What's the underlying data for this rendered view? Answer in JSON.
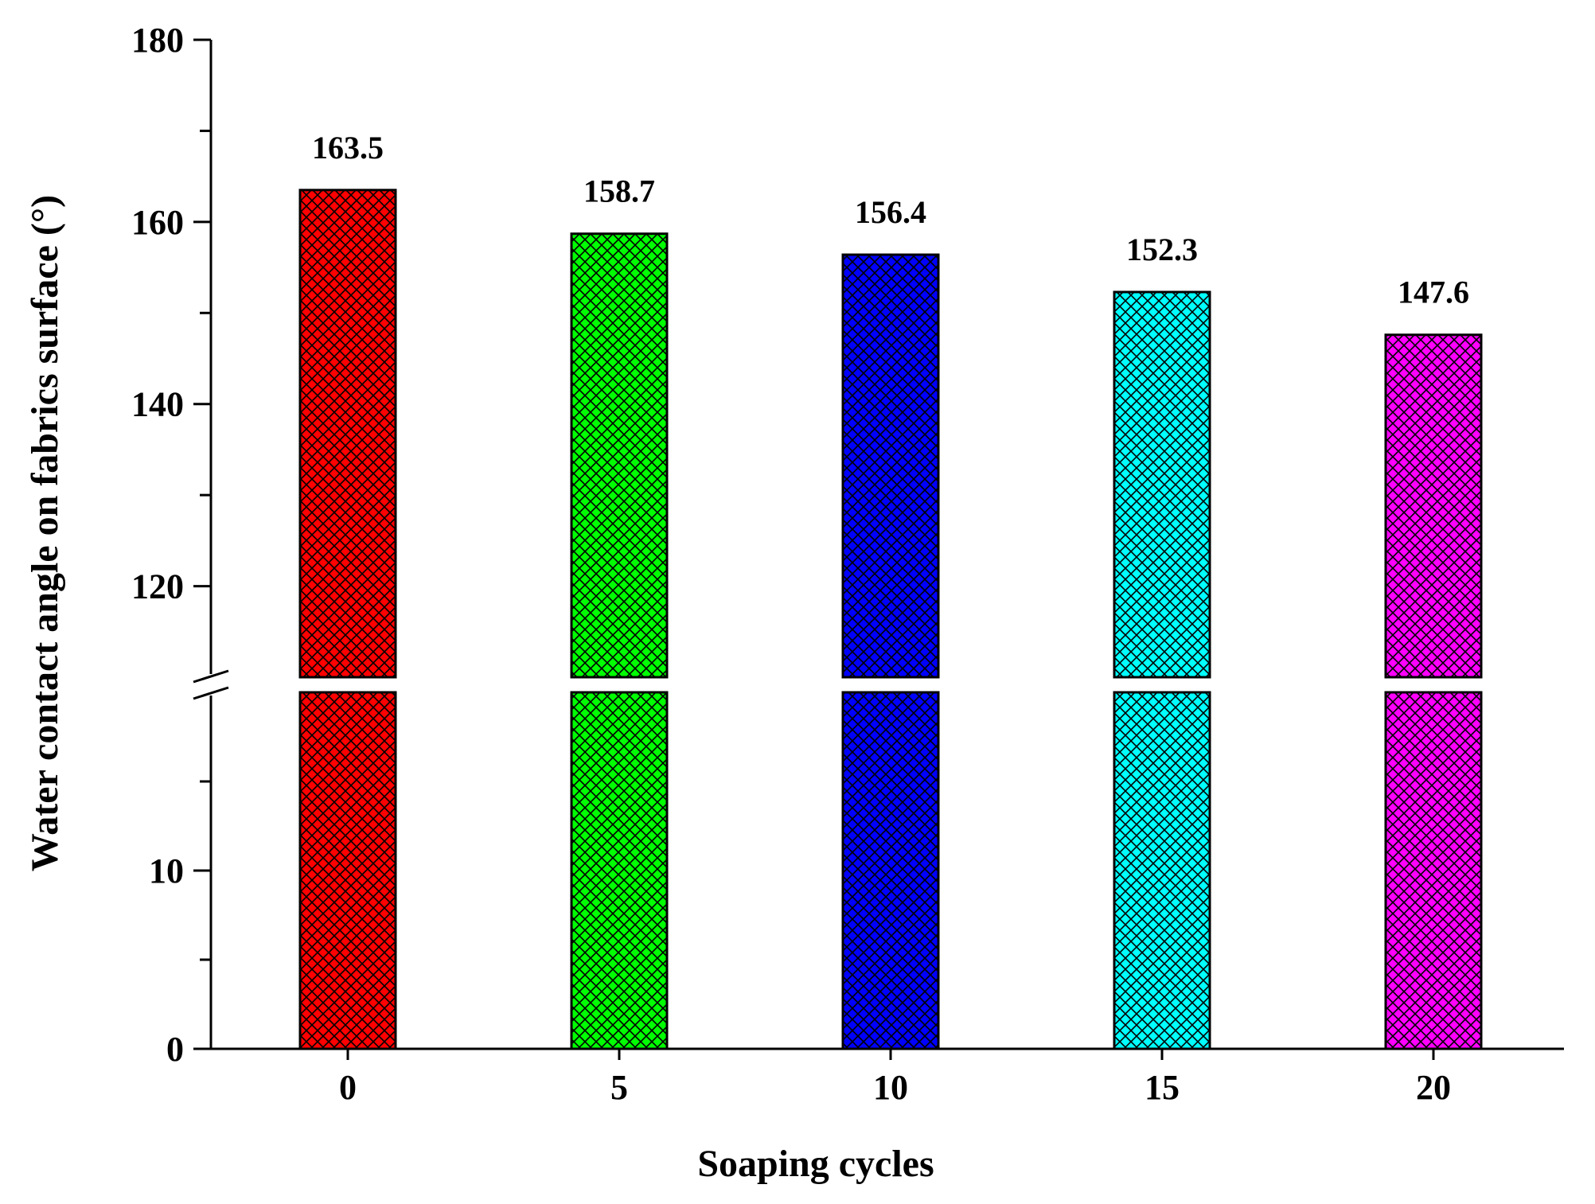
{
  "chart_data": {
    "type": "bar",
    "title": "",
    "xlabel": "Soaping cycles",
    "ylabel": "Water contact angle on fabrics surface (°)",
    "categories": [
      "0",
      "5",
      "10",
      "15",
      "20"
    ],
    "values": [
      163.5,
      158.7,
      156.4,
      152.3,
      147.6
    ],
    "value_labels": [
      "163.5",
      "158.7",
      "156.4",
      "152.3",
      "147.6"
    ],
    "colors": [
      "#ff0000",
      "#00ff00",
      "#0000ff",
      "#00ffff",
      "#ff00ff"
    ],
    "bar_pattern": "crosshatch",
    "y_axis_break": true,
    "y_segments": [
      {
        "range": [
          0,
          20
        ],
        "ticks": [
          "0",
          "10"
        ],
        "minor_step": 5
      },
      {
        "range": [
          110,
          180
        ],
        "ticks": [
          "120",
          "140",
          "160",
          "180"
        ],
        "minor_step": 10
      }
    ],
    "grid": false,
    "legend": "none"
  }
}
